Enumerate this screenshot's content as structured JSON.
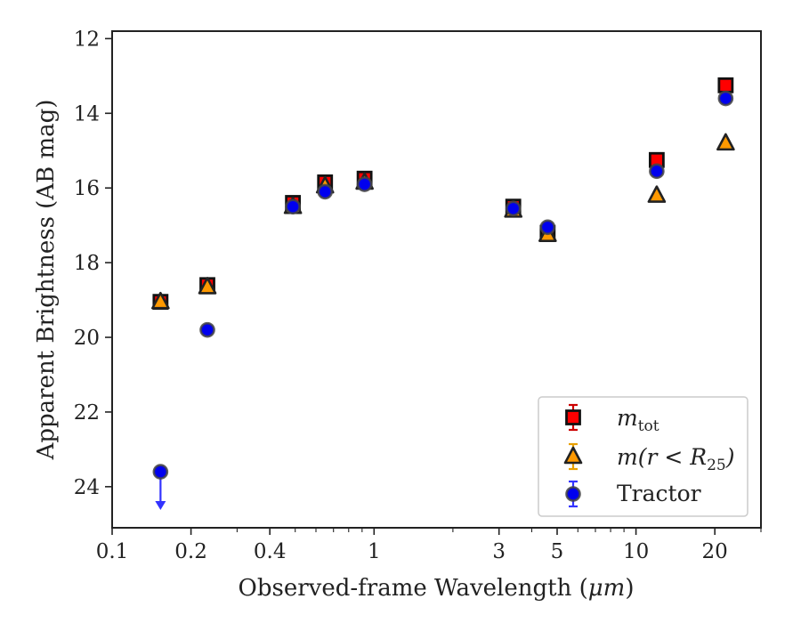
{
  "chart_data": {
    "type": "scatter",
    "xlabel_prefix": "Observed-frame Wavelength (",
    "xlabel_unit": "μm",
    "xlabel_suffix": ")",
    "ylabel": "Apparent Brightness (AB mag)",
    "xscale": "log",
    "xlim": [
      0.1,
      30
    ],
    "ylim": [
      25.1,
      11.8
    ],
    "y_inverted": true,
    "x_ticks": [
      {
        "value": 0.1,
        "label": "0.1"
      },
      {
        "value": 0.2,
        "label": "0.2"
      },
      {
        "value": 0.4,
        "label": "0.4"
      },
      {
        "value": 1,
        "label": "1"
      },
      {
        "value": 3,
        "label": "3"
      },
      {
        "value": 5,
        "label": "5"
      },
      {
        "value": 10,
        "label": "10"
      },
      {
        "value": 20,
        "label": "20"
      }
    ],
    "x_minor_ticks": [
      0.3,
      0.5,
      0.6,
      0.7,
      0.8,
      0.9,
      2,
      4,
      6,
      7,
      8,
      9,
      30
    ],
    "y_ticks": [
      {
        "value": 12,
        "label": "12"
      },
      {
        "value": 14,
        "label": "14"
      },
      {
        "value": 16,
        "label": "16"
      },
      {
        "value": 18,
        "label": "18"
      },
      {
        "value": 20,
        "label": "20"
      },
      {
        "value": 22,
        "label": "22"
      },
      {
        "value": 24,
        "label": "24"
      }
    ],
    "grid": false,
    "legend_position": "lower-right",
    "series": [
      {
        "key": "mtot",
        "marker": "square",
        "color": "#ff0000",
        "errcolor": "#cc0000",
        "x": [
          0.153,
          0.231,
          0.49,
          0.65,
          0.92,
          3.4,
          4.6,
          12.0,
          22.0
        ],
        "y": [
          19.05,
          18.6,
          16.4,
          15.85,
          15.75,
          16.5,
          17.2,
          15.25,
          13.25
        ]
      },
      {
        "key": "m_r25",
        "marker": "triangle",
        "color": "#ff9900",
        "errcolor": "#e8a000",
        "x": [
          0.153,
          0.231,
          0.49,
          0.65,
          0.92,
          3.4,
          4.6,
          12.0,
          22.0
        ],
        "y": [
          19.05,
          18.65,
          16.5,
          15.95,
          15.85,
          16.6,
          17.25,
          16.2,
          14.8
        ]
      },
      {
        "key": "tractor",
        "name": "Tractor",
        "marker": "circle",
        "color": "#0000ee",
        "errcolor": "#3333ff",
        "x": [
          0.153,
          0.231,
          0.49,
          0.65,
          0.92,
          3.4,
          4.6,
          12.0,
          22.0
        ],
        "y": [
          23.6,
          19.8,
          16.5,
          16.1,
          15.9,
          16.55,
          17.05,
          15.55,
          13.6
        ],
        "upper_limit_index": 0,
        "upper_limit_to": 24.6
      }
    ],
    "legend": {
      "mtot_base": "m",
      "mtot_sub": "tot",
      "mr25_base": "m",
      "mr25_mid": "(r < R",
      "mr25_sub": "25",
      "mr25_end": ")",
      "tractor": "Tractor"
    }
  }
}
